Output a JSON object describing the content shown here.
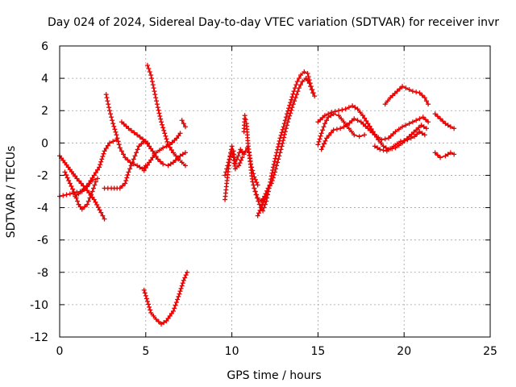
{
  "chart_data": {
    "type": "scatter",
    "title": "Day 024 of 2024, Sidereal Day-to-day VTEC variation (SDTVAR) for receiver invr",
    "xlabel": "GPS time / hours",
    "ylabel": "SDTVAR / TECUs",
    "xlim": [
      0,
      25
    ],
    "ylim": [
      -12,
      6
    ],
    "xticks": [
      0,
      5,
      10,
      15,
      20,
      25
    ],
    "yticks": [
      -12,
      -10,
      -8,
      -6,
      -4,
      -2,
      0,
      2,
      4,
      6
    ],
    "grid": true,
    "marker": "+",
    "color": "#ee0000",
    "series": [
      {
        "points": [
          [
            0.0,
            -0.8
          ],
          [
            0.5,
            -1.5
          ],
          [
            1.0,
            -2.2
          ],
          [
            1.5,
            -2.8
          ],
          [
            2.0,
            -3.5
          ],
          [
            2.4,
            -4.3
          ],
          [
            2.6,
            -4.7
          ]
        ]
      },
      {
        "points": [
          [
            0.0,
            -3.3
          ],
          [
            0.4,
            -3.2
          ],
          [
            0.8,
            -3.1
          ],
          [
            1.2,
            -3.0
          ],
          [
            1.6,
            -2.7
          ],
          [
            1.9,
            -2.3
          ],
          [
            2.2,
            -2.2
          ]
        ]
      },
      {
        "points": [
          [
            0.3,
            -1.8
          ],
          [
            0.6,
            -2.5
          ],
          [
            0.9,
            -3.2
          ],
          [
            1.1,
            -3.8
          ],
          [
            1.3,
            -4.1
          ],
          [
            1.6,
            -3.8
          ],
          [
            1.9,
            -3.0
          ],
          [
            2.1,
            -2.4
          ]
        ]
      },
      {
        "points": [
          [
            0.9,
            -3.3
          ],
          [
            1.3,
            -3.0
          ],
          [
            1.7,
            -2.5
          ],
          [
            2.0,
            -2.0
          ],
          [
            2.3,
            -1.5
          ],
          [
            2.6,
            -0.5
          ],
          [
            2.9,
            0.0
          ],
          [
            3.3,
            0.2
          ]
        ]
      },
      {
        "points": [
          [
            2.7,
            3.0
          ],
          [
            2.9,
            2.0
          ],
          [
            3.1,
            1.2
          ],
          [
            3.3,
            0.5
          ],
          [
            3.5,
            -0.3
          ],
          [
            3.8,
            -0.9
          ],
          [
            4.1,
            -1.2
          ],
          [
            4.5,
            -1.4
          ],
          [
            4.8,
            -1.6
          ],
          [
            5.0,
            -1.4
          ]
        ]
      },
      {
        "points": [
          [
            2.6,
            -2.8
          ],
          [
            3.0,
            -2.8
          ],
          [
            3.5,
            -2.8
          ],
          [
            3.8,
            -2.5
          ],
          [
            4.0,
            -1.8
          ],
          [
            4.3,
            -1.0
          ],
          [
            4.6,
            -0.2
          ],
          [
            4.9,
            0.1
          ],
          [
            5.1,
            0.0
          ]
        ]
      },
      {
        "points": [
          [
            3.6,
            1.3
          ],
          [
            4.0,
            0.9
          ],
          [
            4.5,
            0.5
          ],
          [
            5.0,
            0.1
          ],
          [
            5.4,
            -0.5
          ],
          [
            5.7,
            -1.0
          ],
          [
            6.0,
            -1.3
          ],
          [
            6.3,
            -1.4
          ],
          [
            6.6,
            -1.2
          ],
          [
            7.0,
            -0.8
          ],
          [
            7.3,
            -0.6
          ]
        ]
      },
      {
        "points": [
          [
            4.9,
            -1.7
          ],
          [
            5.2,
            -1.2
          ],
          [
            5.6,
            -0.6
          ],
          [
            6.0,
            -0.3
          ],
          [
            6.4,
            -0.1
          ],
          [
            6.8,
            0.3
          ],
          [
            7.0,
            0.6
          ]
        ]
      },
      {
        "points": [
          [
            5.1,
            4.8
          ],
          [
            5.3,
            4.2
          ],
          [
            5.5,
            3.2
          ],
          [
            5.7,
            2.2
          ],
          [
            5.9,
            1.3
          ],
          [
            6.1,
            0.6
          ],
          [
            6.3,
            -0.1
          ],
          [
            6.6,
            -0.6
          ],
          [
            6.9,
            -1.0
          ],
          [
            7.1,
            -1.2
          ],
          [
            7.3,
            -1.4
          ]
        ]
      },
      {
        "points": [
          [
            7.1,
            1.4
          ],
          [
            7.3,
            1.0
          ]
        ]
      },
      {
        "points": [
          [
            4.9,
            -9.1
          ],
          [
            5.1,
            -9.8
          ],
          [
            5.3,
            -10.5
          ],
          [
            5.6,
            -10.9
          ],
          [
            5.9,
            -11.2
          ],
          [
            6.2,
            -11.0
          ],
          [
            6.6,
            -10.4
          ],
          [
            6.9,
            -9.5
          ],
          [
            7.2,
            -8.5
          ],
          [
            7.4,
            -8.0
          ]
        ]
      },
      {
        "points": [
          [
            9.6,
            -3.5
          ],
          [
            9.7,
            -2.5
          ],
          [
            9.8,
            -1.6
          ],
          [
            9.9,
            -0.8
          ],
          [
            10.0,
            -0.2
          ],
          [
            10.1,
            -0.5
          ],
          [
            10.2,
            -1.3
          ],
          [
            10.3,
            -1.0
          ],
          [
            10.5,
            -0.4
          ],
          [
            10.7,
            -0.7
          ],
          [
            10.9,
            -0.3
          ],
          [
            11.0,
            -0.6
          ],
          [
            11.1,
            -1.5
          ],
          [
            11.2,
            -2.4
          ],
          [
            11.4,
            -3.2
          ],
          [
            11.6,
            -3.8
          ],
          [
            11.8,
            -4.2
          ],
          [
            12.0,
            -3.6
          ],
          [
            12.2,
            -2.6
          ],
          [
            12.4,
            -1.5
          ],
          [
            12.6,
            -0.6
          ],
          [
            12.8,
            0.3
          ],
          [
            13.0,
            1.0
          ],
          [
            13.2,
            1.8
          ],
          [
            13.4,
            2.5
          ],
          [
            13.6,
            3.2
          ],
          [
            13.8,
            3.8
          ],
          [
            14.0,
            4.2
          ],
          [
            14.2,
            4.4
          ],
          [
            14.4,
            4.3
          ],
          [
            14.6,
            3.5
          ],
          [
            14.8,
            2.9
          ]
        ]
      },
      {
        "points": [
          [
            9.6,
            -2.0
          ],
          [
            9.8,
            -1.2
          ],
          [
            10.0,
            -0.5
          ],
          [
            10.1,
            -0.9
          ],
          [
            10.2,
            -1.6
          ],
          [
            10.4,
            -1.4
          ],
          [
            10.6,
            -0.9
          ]
        ]
      },
      {
        "points": [
          [
            10.7,
            0.7
          ],
          [
            10.75,
            1.7
          ],
          [
            10.85,
            1.2
          ],
          [
            10.95,
            -0.2
          ],
          [
            11.1,
            -1.3
          ],
          [
            11.3,
            -2.1
          ],
          [
            11.5,
            -2.6
          ]
        ]
      },
      {
        "points": [
          [
            11.3,
            -2.8
          ],
          [
            11.5,
            -3.4
          ],
          [
            11.7,
            -3.6
          ],
          [
            11.9,
            -3.3
          ],
          [
            12.1,
            -2.8
          ],
          [
            12.3,
            -2.5
          ],
          [
            12.5,
            -1.8
          ],
          [
            12.7,
            -1.0
          ],
          [
            12.9,
            -0.2
          ],
          [
            13.1,
            0.7
          ],
          [
            13.3,
            1.5
          ],
          [
            13.5,
            2.2
          ],
          [
            13.7,
            2.8
          ],
          [
            13.9,
            3.4
          ],
          [
            14.1,
            3.8
          ],
          [
            14.3,
            4.0
          ],
          [
            14.5,
            3.7
          ],
          [
            14.7,
            3.1
          ]
        ]
      },
      {
        "points": [
          [
            11.5,
            -4.5
          ],
          [
            11.7,
            -4.0
          ],
          [
            11.9,
            -3.5
          ],
          [
            12.1,
            -3.0
          ]
        ]
      },
      {
        "points": [
          [
            15.0,
            -0.1
          ],
          [
            15.2,
            0.6
          ],
          [
            15.4,
            1.2
          ],
          [
            15.6,
            1.6
          ],
          [
            15.9,
            1.8
          ],
          [
            16.2,
            1.7
          ],
          [
            16.5,
            1.3
          ],
          [
            16.8,
            0.9
          ],
          [
            17.1,
            0.5
          ],
          [
            17.4,
            0.4
          ],
          [
            17.7,
            0.5
          ]
        ]
      },
      {
        "points": [
          [
            15.0,
            1.3
          ],
          [
            15.4,
            1.7
          ],
          [
            15.8,
            1.9
          ],
          [
            16.2,
            2.0
          ],
          [
            16.6,
            2.1
          ],
          [
            17.0,
            2.3
          ],
          [
            17.3,
            2.1
          ],
          [
            17.6,
            1.7
          ],
          [
            17.9,
            1.2
          ],
          [
            18.2,
            0.7
          ],
          [
            18.5,
            0.2
          ],
          [
            18.8,
            -0.2
          ],
          [
            19.1,
            -0.4
          ],
          [
            19.5,
            -0.3
          ],
          [
            19.9,
            0.0
          ],
          [
            20.3,
            0.4
          ],
          [
            20.7,
            0.8
          ],
          [
            21.0,
            1.1
          ],
          [
            21.3,
            0.9
          ]
        ]
      },
      {
        "points": [
          [
            15.2,
            -0.4
          ],
          [
            15.5,
            0.3
          ],
          [
            15.9,
            0.8
          ],
          [
            16.3,
            0.9
          ],
          [
            16.7,
            1.1
          ],
          [
            17.1,
            1.5
          ],
          [
            17.5,
            1.3
          ],
          [
            17.9,
            0.9
          ],
          [
            18.3,
            0.5
          ],
          [
            18.7,
            0.2
          ],
          [
            19.1,
            0.3
          ],
          [
            19.5,
            0.7
          ],
          [
            19.9,
            1.0
          ],
          [
            20.3,
            1.2
          ],
          [
            20.7,
            1.4
          ],
          [
            21.1,
            1.6
          ],
          [
            21.4,
            1.3
          ]
        ]
      },
      {
        "points": [
          [
            18.3,
            -0.2
          ],
          [
            18.6,
            -0.4
          ],
          [
            19.0,
            -0.5
          ],
          [
            19.4,
            -0.2
          ],
          [
            19.8,
            0.1
          ],
          [
            20.2,
            0.2
          ],
          [
            20.6,
            0.4
          ],
          [
            20.9,
            0.7
          ],
          [
            21.2,
            0.5
          ]
        ]
      },
      {
        "points": [
          [
            18.9,
            2.4
          ],
          [
            19.2,
            2.8
          ],
          [
            19.6,
            3.2
          ],
          [
            19.9,
            3.5
          ],
          [
            20.1,
            3.4
          ],
          [
            20.5,
            3.2
          ],
          [
            20.9,
            3.1
          ],
          [
            21.2,
            2.8
          ],
          [
            21.4,
            2.4
          ]
        ]
      },
      {
        "points": [
          [
            21.8,
            1.8
          ],
          [
            22.1,
            1.5
          ],
          [
            22.4,
            1.2
          ],
          [
            22.7,
            1.0
          ],
          [
            22.9,
            0.9
          ]
        ]
      },
      {
        "points": [
          [
            21.8,
            -0.6
          ],
          [
            22.1,
            -0.9
          ],
          [
            22.4,
            -0.8
          ],
          [
            22.7,
            -0.6
          ],
          [
            22.9,
            -0.7
          ]
        ]
      }
    ]
  }
}
